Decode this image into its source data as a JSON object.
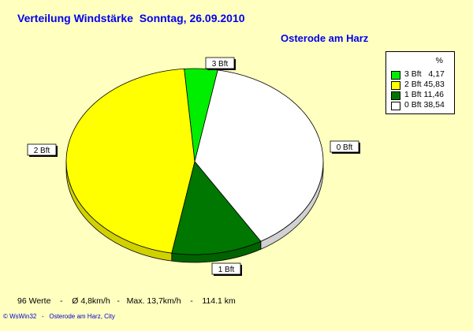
{
  "title": "Verteilung Windstärke  Sonntag, 26.09.2010",
  "location": "Osterode am Harz",
  "legend": {
    "header": "%",
    "items": [
      {
        "label": "3 Bft   4,17",
        "color": "#00ee00"
      },
      {
        "label": "2 Bft 45,83",
        "color": "#ffff00"
      },
      {
        "label": "1 Bft 11,46",
        "color": "#007700"
      },
      {
        "label": "0 Bft 38,54",
        "color": "#ffffff"
      }
    ]
  },
  "chart_data": {
    "type": "pie",
    "title": "Verteilung Windstärke  Sonntag, 26.09.2010",
    "slices": [
      {
        "label": "3 Bft",
        "value": 4.17,
        "color": "#00ee00"
      },
      {
        "label": "0 Bft",
        "value": 38.54,
        "color": "#ffffff"
      },
      {
        "label": "1 Bft",
        "value": 11.46,
        "color": "#007700"
      },
      {
        "label": "2 Bft",
        "value": 45.83,
        "color": "#ffff00"
      }
    ]
  },
  "stats": "96 Werte    -    Ø 4,8km/h   -   Max. 13,7km/h    -    114.1 km",
  "footer": "© WsWin32   -   Osterode am Harz, City"
}
